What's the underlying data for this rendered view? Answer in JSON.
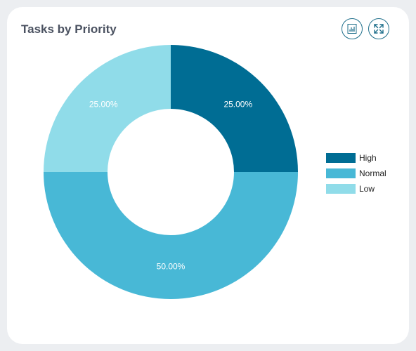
{
  "card": {
    "title": "Tasks by Priority"
  },
  "toolbar": {
    "buttons": [
      {
        "icon": "report-chart-icon"
      },
      {
        "icon": "expand-icon"
      }
    ]
  },
  "chart_data": {
    "type": "pie",
    "donut": true,
    "categories": [
      "High",
      "Normal",
      "Low"
    ],
    "values": [
      25,
      50,
      25
    ],
    "labels": [
      "25.00%",
      "50.00%",
      "25.00%"
    ],
    "colors": [
      "#006d94",
      "#48b8d6",
      "#90dce9"
    ],
    "legend_position": "right",
    "title": "Tasks by Priority"
  }
}
